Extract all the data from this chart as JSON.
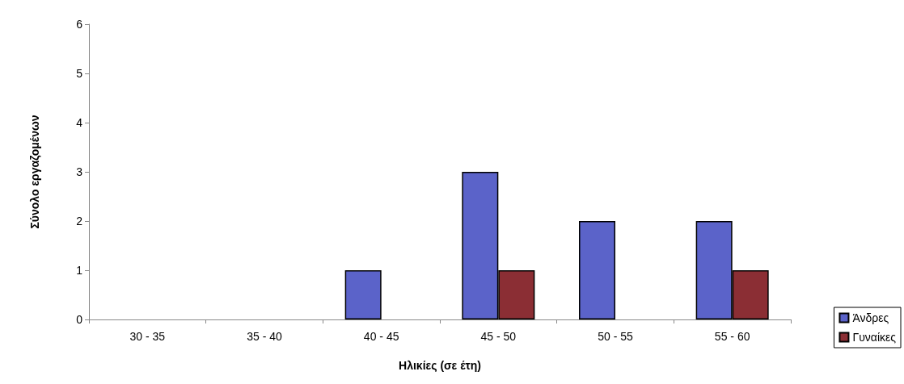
{
  "chart_data": {
    "type": "bar",
    "xlabel": "Ηλικίες (σε έτη)",
    "ylabel": "Σύνολο εργαζομένων",
    "categories": [
      "30 - 35",
      "35 - 40",
      "40 - 45",
      "45 - 50",
      "50 - 55",
      "55 - 60"
    ],
    "series": [
      {
        "name": "Άνδρες",
        "color": "#5b63c9",
        "values": [
          0,
          0,
          1,
          3,
          2,
          2
        ]
      },
      {
        "name": "Γυναίκες",
        "color": "#8b2e34",
        "values": [
          0,
          0,
          0,
          1,
          0,
          1
        ]
      }
    ],
    "ylim": [
      0,
      6
    ],
    "yticks": [
      0,
      1,
      2,
      3,
      4,
      5,
      6
    ],
    "grid": false,
    "legend": "bottom right"
  }
}
